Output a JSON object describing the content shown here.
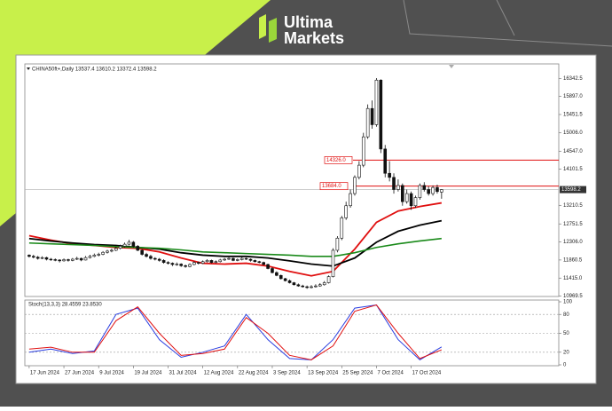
{
  "logo": {
    "line1": "Ultima",
    "line2": "Markets"
  },
  "chart_data": [
    {
      "type": "candlestick",
      "header": "CHINA50ft+,Daily  13537.4 13610.2 13372.4 13598.2",
      "xlim": [
        -1,
        122
      ],
      "ylim": [
        10960,
        16700
      ],
      "yticks": [
        16342.5,
        {
          "value": 15897,
          "label": "15897.0"
        },
        15451.5,
        {
          "value": 15006,
          "label": "15006.0"
        },
        {
          "value": 14547,
          "label": "14547.0"
        },
        14101.5,
        13210.5,
        12751.5,
        {
          "value": 12306,
          "label": "12306.0"
        },
        11860.5,
        {
          "value": 11415,
          "label": "11415.0"
        },
        10969.5
      ],
      "xticks": [
        {
          "value": 0,
          "label": "17 Jun 2024"
        },
        {
          "value": 8,
          "label": "27 Jun 2024"
        },
        {
          "value": 16,
          "label": "9 Jul 2024"
        },
        {
          "value": 24,
          "label": "19 Jul 2024"
        },
        {
          "value": 32,
          "label": "31 Jul 2024"
        },
        {
          "value": 40,
          "label": "12 Aug 2024"
        },
        {
          "value": 48,
          "label": "22 Aug 2024"
        },
        {
          "value": 56,
          "label": "3 Sep 2024"
        },
        {
          "value": 64,
          "label": "13 Sep 2024"
        },
        {
          "value": 72,
          "label": "25 Sep 2024"
        },
        {
          "value": 80,
          "label": "7 Oct 2024"
        },
        {
          "value": 88,
          "label": "17 Oct 2024"
        }
      ],
      "ohlc": [
        [
          11980,
          12000,
          11920,
          11950
        ],
        [
          11950,
          11990,
          11900,
          11930
        ],
        [
          11930,
          11960,
          11870,
          11900
        ],
        [
          11900,
          11950,
          11880,
          11920
        ],
        [
          11920,
          11940,
          11850,
          11880
        ],
        [
          11880,
          11910,
          11840,
          11870
        ],
        [
          11870,
          11900,
          11830,
          11860
        ],
        [
          11860,
          11880,
          11800,
          11840
        ],
        [
          11840,
          11900,
          11820,
          11870
        ],
        [
          11870,
          11890,
          11820,
          11850
        ],
        [
          11850,
          11910,
          11830,
          11880
        ],
        [
          11880,
          11940,
          11860,
          11900
        ],
        [
          11900,
          11920,
          11830,
          11860
        ],
        [
          11860,
          11960,
          11850,
          11920
        ],
        [
          11920,
          11990,
          11900,
          11950
        ],
        [
          11950,
          12020,
          11930,
          11980
        ],
        [
          11980,
          12040,
          11950,
          12000
        ],
        [
          12000,
          12080,
          11980,
          12050
        ],
        [
          12050,
          12110,
          12020,
          12080
        ],
        [
          12080,
          12140,
          12050,
          12100
        ],
        [
          12100,
          12190,
          12080,
          12150
        ],
        [
          12150,
          12240,
          12120,
          12200
        ],
        [
          12200,
          12290,
          12170,
          12250
        ],
        [
          12250,
          12360,
          12220,
          12300
        ],
        [
          12300,
          12330,
          12170,
          12200
        ],
        [
          12200,
          12230,
          12080,
          12100
        ],
        [
          12100,
          12130,
          11970,
          12000
        ],
        [
          12000,
          12040,
          11920,
          11950
        ],
        [
          11950,
          11990,
          11870,
          11900
        ],
        [
          11900,
          11930,
          11850,
          11880
        ],
        [
          11880,
          11910,
          11820,
          11850
        ],
        [
          11850,
          11880,
          11770,
          11800
        ],
        [
          11800,
          11830,
          11750,
          11780
        ],
        [
          11780,
          11800,
          11710,
          11750
        ],
        [
          11750,
          11800,
          11720,
          11760
        ],
        [
          11760,
          11780,
          11690,
          11720
        ],
        [
          11720,
          11750,
          11670,
          11700
        ],
        [
          11700,
          11780,
          11680,
          11750
        ],
        [
          11750,
          11830,
          11730,
          11800
        ],
        [
          11800,
          11820,
          11750,
          11780
        ],
        [
          11780,
          11850,
          11760,
          11820
        ],
        [
          11820,
          11880,
          11800,
          11850
        ],
        [
          11850,
          11870,
          11780,
          11800
        ],
        [
          11800,
          11850,
          11780,
          11820
        ],
        [
          11820,
          11890,
          11800,
          11860
        ],
        [
          11860,
          11910,
          11840,
          11880
        ],
        [
          11880,
          11930,
          11860,
          11900
        ],
        [
          11900,
          11920,
          11830,
          11850
        ],
        [
          11850,
          11900,
          11830,
          11870
        ],
        [
          11870,
          11930,
          11850,
          11900
        ],
        [
          11900,
          11920,
          11860,
          11880
        ],
        [
          11880,
          11900,
          11820,
          11850
        ],
        [
          11850,
          11870,
          11800,
          11820
        ],
        [
          11820,
          11840,
          11780,
          11800
        ],
        [
          11800,
          11820,
          11730,
          11750
        ],
        [
          11750,
          11770,
          11630,
          11650
        ],
        [
          11650,
          11680,
          11530,
          11550
        ],
        [
          11550,
          11580,
          11460,
          11480
        ],
        [
          11480,
          11500,
          11380,
          11400
        ],
        [
          11400,
          11420,
          11330,
          11350
        ],
        [
          11350,
          11380,
          11280,
          11300
        ],
        [
          11300,
          11320,
          11230,
          11250
        ],
        [
          11250,
          11280,
          11200,
          11220
        ],
        [
          11220,
          11250,
          11180,
          11200
        ],
        [
          11200,
          11230,
          11150,
          11180
        ],
        [
          11180,
          11240,
          11160,
          11200
        ],
        [
          11200,
          11260,
          11180,
          11220
        ],
        [
          11220,
          11290,
          11200,
          11250
        ],
        [
          11250,
          11340,
          11230,
          11300
        ],
        [
          11300,
          11480,
          11280,
          11450
        ],
        [
          11450,
          12150,
          11430,
          12100
        ],
        [
          12100,
          12450,
          12050,
          12400
        ],
        [
          12400,
          12950,
          12350,
          12900
        ],
        [
          12900,
          13300,
          12850,
          13200
        ],
        [
          13200,
          13600,
          13150,
          13500
        ],
        [
          13500,
          13950,
          13450,
          13900
        ],
        [
          13900,
          14300,
          13850,
          14200
        ],
        [
          14200,
          15000,
          14150,
          14900
        ],
        [
          14900,
          15700,
          14850,
          15600
        ],
        [
          15600,
          15800,
          15100,
          15200
        ],
        [
          15200,
          16350,
          15150,
          16300
        ],
        [
          16300,
          16320,
          14500,
          14600
        ],
        [
          14600,
          14700,
          13900,
          14000
        ],
        [
          14000,
          14300,
          13800,
          13900
        ],
        [
          13900,
          14000,
          13500,
          13600
        ],
        [
          13600,
          13850,
          13550,
          13700
        ],
        [
          13700,
          13750,
          13200,
          13300
        ],
        [
          13300,
          13600,
          13250,
          13500
        ],
        [
          13500,
          13550,
          13100,
          13200
        ],
        [
          13200,
          13450,
          13150,
          13400
        ],
        [
          13400,
          13750,
          13350,
          13700
        ],
        [
          13700,
          13780,
          13550,
          13600
        ],
        [
          13600,
          13680,
          13450,
          13500
        ],
        [
          13500,
          13700,
          13450,
          13650
        ],
        [
          13650,
          13720,
          13500,
          13550
        ],
        [
          13537.4,
          13610.2,
          13372.4,
          13598.2
        ]
      ],
      "series": [
        {
          "color": "#e01010",
          "x": [
            0,
            5,
            10,
            15,
            20,
            25,
            30,
            35,
            40,
            45,
            50,
            55,
            60,
            65,
            70,
            75,
            80,
            85,
            90,
            95
          ],
          "values": [
            12460,
            12350,
            12260,
            12220,
            12170,
            12150,
            12060,
            11910,
            11780,
            11760,
            11780,
            11710,
            11580,
            11470,
            11580,
            12130,
            12790,
            13070,
            13180,
            13270
          ]
        },
        {
          "color": "#000000",
          "x": [
            0,
            5,
            10,
            15,
            20,
            25,
            30,
            35,
            40,
            45,
            50,
            55,
            60,
            65,
            70,
            75,
            80,
            85,
            90,
            95
          ],
          "values": [
            12390,
            12330,
            12280,
            12240,
            12220,
            12170,
            12130,
            12040,
            11980,
            11950,
            11950,
            11910,
            11840,
            11760,
            11710,
            11910,
            12300,
            12570,
            12720,
            12830
          ]
        },
        {
          "color": "#1a8a1a",
          "x": [
            0,
            5,
            10,
            15,
            20,
            25,
            30,
            35,
            40,
            45,
            50,
            55,
            60,
            65,
            70,
            75,
            80,
            85,
            90,
            95
          ],
          "values": [
            12280,
            12260,
            12240,
            12220,
            12190,
            12170,
            12150,
            12110,
            12060,
            12040,
            12020,
            12000,
            11980,
            11950,
            11950,
            12040,
            12170,
            12260,
            12330,
            12390
          ]
        }
      ],
      "levels": [
        {
          "value": 14326,
          "label": "14326.0",
          "color": "#e01010"
        },
        {
          "value": 13684,
          "label": "13684.0",
          "color": "#e01010"
        }
      ],
      "price_line": {
        "value": 13598.2,
        "label": "13598.2",
        "color": "#b0b0b0"
      }
    },
    {
      "type": "line",
      "title": "Stoch(13,3,3) 28.4559 23.8530",
      "ylim": [
        0,
        100
      ],
      "yticks": [
        0,
        20,
        50,
        80,
        100
      ],
      "grid": [
        20,
        50,
        80
      ],
      "series": [
        {
          "color": "#2a3ee0",
          "x": [
            0,
            5,
            10,
            15,
            20,
            25,
            30,
            35,
            40,
            45,
            50,
            55,
            60,
            65,
            70,
            75,
            80,
            85,
            90,
            95
          ],
          "values": [
            20,
            25,
            18,
            22,
            80,
            90,
            40,
            12,
            20,
            30,
            80,
            40,
            10,
            8,
            40,
            90,
            95,
            40,
            8,
            28.4559
          ]
        },
        {
          "color": "#e01010",
          "x": [
            0,
            5,
            10,
            15,
            20,
            25,
            30,
            35,
            40,
            45,
            50,
            55,
            60,
            65,
            70,
            75,
            80,
            85,
            90,
            95
          ],
          "values": [
            25,
            28,
            20,
            20,
            70,
            92,
            50,
            15,
            18,
            25,
            75,
            50,
            15,
            8,
            30,
            85,
            95,
            50,
            10,
            23.853
          ]
        }
      ]
    }
  ]
}
